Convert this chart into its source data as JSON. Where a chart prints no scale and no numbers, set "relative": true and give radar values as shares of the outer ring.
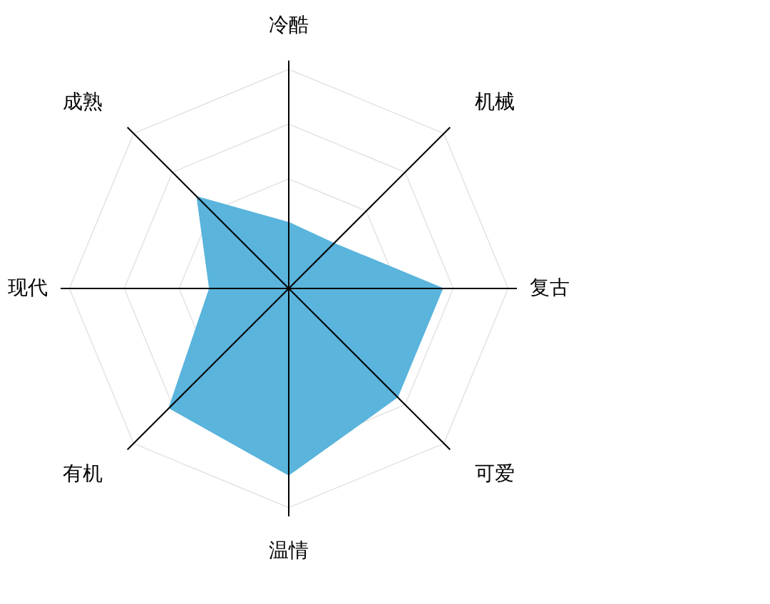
{
  "chart_data": {
    "type": "radar",
    "relative": true,
    "grid": true,
    "categories": [
      "冷酷",
      "机械",
      "复古",
      "可爱",
      "温情",
      "有机",
      "现代",
      "成熟"
    ],
    "series": [
      {
        "color": "#5ab4dc",
        "values": [
          0.3,
          0.29,
          0.7,
          0.7,
          0.85,
          0.77,
          0.36,
          0.59
        ]
      }
    ]
  }
}
